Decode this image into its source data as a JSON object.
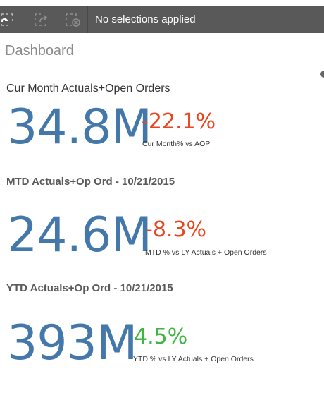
{
  "toolbar": {
    "buttons": [
      {
        "name": "smart-search",
        "icon": "lasso-select-icon"
      },
      {
        "name": "step-forward",
        "icon": "step-forward-icon"
      },
      {
        "name": "clear-all",
        "icon": "clear-selections-icon"
      }
    ],
    "selection_status": "No selections applied",
    "bar_color": "#595959"
  },
  "sheet": {
    "title": "Dashboard"
  },
  "kpis": [
    {
      "title": "Cur Month Actuals+Open Orders",
      "value": "34.8M",
      "delta": "-22.1%",
      "delta_color": "#e8461e",
      "subtitle": "Cur Month% vs AOP"
    },
    {
      "title": "MTD Actuals+Op Ord - 10/21/2015",
      "value": "24.6M",
      "delta": "-8.3%",
      "delta_color": "#e8461e",
      "subtitle": "MTD % vs LY Actuals + Open Orders"
    },
    {
      "title": "YTD Actuals+Op Ord - 10/21/2015",
      "value": "393M",
      "delta": "4.5%",
      "delta_color": "#3fb63f",
      "subtitle": "YTD % vs LY Actuals + Open Orders"
    }
  ],
  "colors": {
    "value_blue": "#4477aa",
    "negative": "#e8461e",
    "positive": "#3fb63f"
  }
}
